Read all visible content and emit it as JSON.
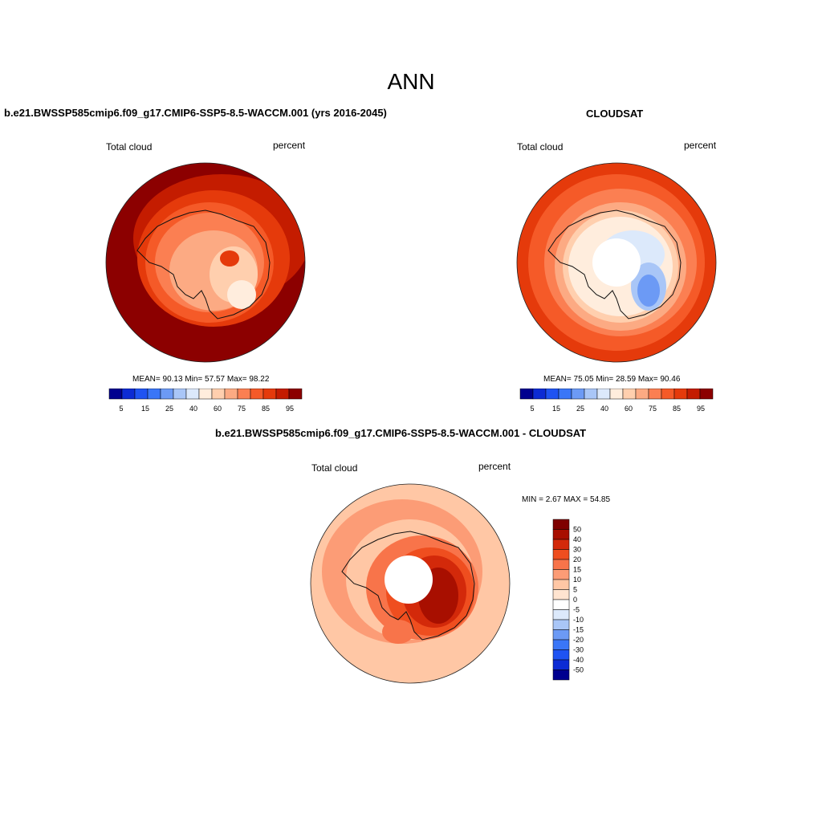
{
  "figure": {
    "title": "ANN"
  },
  "colors": {
    "seq": [
      "#00008f",
      "#0c2bd4",
      "#1f53f2",
      "#3a76f7",
      "#6c9af5",
      "#a9c6f7",
      "#dce9fb",
      "#ffeddd",
      "#ffcfae",
      "#fcaa83",
      "#fb7f52",
      "#f55a28",
      "#e53a0b",
      "#c41c00",
      "#8c0000"
    ],
    "diff": [
      "#00008f",
      "#0c2bd4",
      "#1f53f2",
      "#3a76f7",
      "#6c9af5",
      "#a9c6f7",
      "#dce9fb",
      "#ffffff",
      "#ffe4d0",
      "#ffc7a5",
      "#fc9c76",
      "#f8744a",
      "#ef4e1f",
      "#d3290a",
      "#a80f00",
      "#7f0000"
    ],
    "coast": "#111111"
  },
  "panels": [
    {
      "title": "b.e21.BWSSP585cmip6.f09_g17.CMIP6-SSP5-8.5-WACCM.001 (yrs 2016-2045)",
      "left_label": "Total cloud",
      "right_label": "percent",
      "stats": "MEAN=  90.13  Min=  57.57  Max=  98.22",
      "colorbar_ticks": [
        "5",
        "15",
        "25",
        "40",
        "60",
        "75",
        "85",
        "95"
      ]
    },
    {
      "title": "CLOUDSAT",
      "left_label": "Total cloud",
      "right_label": "percent",
      "stats": "MEAN=  75.05  Min=  28.59  Max=  90.46",
      "colorbar_ticks": [
        "5",
        "15",
        "25",
        "40",
        "60",
        "75",
        "85",
        "95"
      ]
    },
    {
      "title": "b.e21.BWSSP585cmip6.f09_g17.CMIP6-SSP5-8.5-WACCM.001 - CLOUDSAT",
      "left_label": "Total cloud",
      "right_label": "percent",
      "stats": "MIN =   2.67 MAX =  54.85",
      "colorbar_ticks": [
        "50",
        "40",
        "30",
        "20",
        "15",
        "10",
        "5",
        "0",
        "-5",
        "-10",
        "-15",
        "-20",
        "-30",
        "-40",
        "-50"
      ]
    }
  ]
}
